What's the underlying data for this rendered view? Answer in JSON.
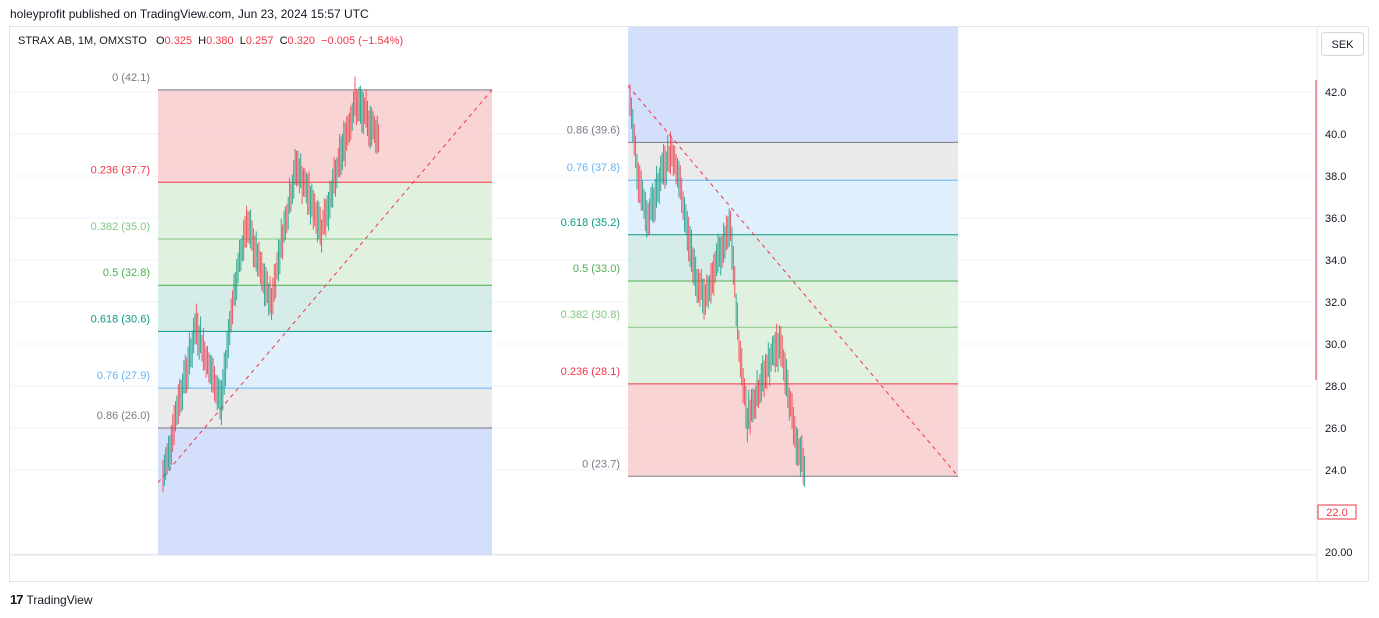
{
  "header": {
    "published": "holeyprofit published on TradingView.com, Jun 23, 2024 15:57 UTC"
  },
  "symbol": {
    "name": "STRAX AB, 1M, OMXSTO",
    "open_label": "O",
    "open": "0.325",
    "high_label": "H",
    "high": "0.380",
    "low_label": "L",
    "low": "0.257",
    "close_label": "C",
    "close": "0.320",
    "change": "−0.005 (−1.54%)"
  },
  "currency_button": "SEK",
  "footer": {
    "brand": "TradingView",
    "logo_mark": "17"
  },
  "colors": {
    "fib_0": "#787b86",
    "fib_236": "#f23645",
    "fib_382": "#81c784",
    "fib_5": "#4caf50",
    "fib_618": "#089981",
    "fib_76": "#64b5f6",
    "fib_86": "#787b86",
    "zone_red": "#f7c5c5",
    "zone_green": "#d7ecd5",
    "zone_teal": "#c7e6e2",
    "zone_blue_light": "#d6eafb",
    "zone_gray": "#e3e3e3",
    "zone_blue": "#ccd9fb",
    "candle_up": "#089981",
    "candle_down": "#f23645",
    "price_line": "#f23645"
  },
  "chart_data": {
    "type": "candlestick",
    "y_axis": {
      "ticks": [
        "42.0",
        "40.0",
        "38.0",
        "36.0",
        "34.0",
        "32.0",
        "30.0",
        "28.0",
        "26.0",
        "24.0",
        "20.00"
      ],
      "tick_values": [
        42,
        40,
        38,
        36,
        34,
        32,
        30,
        28,
        26,
        24,
        20
      ],
      "current_price": "22.0",
      "ylim": [
        20,
        43
      ]
    },
    "fib_left": {
      "direction": "up",
      "levels": [
        {
          "label": "0 (42.1)",
          "value": 42.1,
          "color": "#787b86"
        },
        {
          "label": "0.236 (37.7)",
          "value": 37.7,
          "color": "#f23645"
        },
        {
          "label": "0.382 (35.0)",
          "value": 35.0,
          "color": "#81c784"
        },
        {
          "label": "0.5 (32.8)",
          "value": 32.8,
          "color": "#4caf50"
        },
        {
          "label": "0.618 (30.6)",
          "value": 30.6,
          "color": "#089981"
        },
        {
          "label": "0.76 (27.9)",
          "value": 27.9,
          "color": "#64b5f6"
        },
        {
          "label": "0.86 (26.0)",
          "value": 26.0,
          "color": "#787b86"
        }
      ]
    },
    "fib_right": {
      "direction": "down",
      "levels": [
        {
          "label": "0.86 (39.6)",
          "value": 39.6,
          "color": "#787b86"
        },
        {
          "label": "0.76 (37.8)",
          "value": 37.8,
          "color": "#64b5f6"
        },
        {
          "label": "0.618 (35.2)",
          "value": 35.2,
          "color": "#089981"
        },
        {
          "label": "0.5 (33.0)",
          "value": 33.0,
          "color": "#4caf50"
        },
        {
          "label": "0.382 (30.8)",
          "value": 30.8,
          "color": "#81c784"
        },
        {
          "label": "0.236 (28.1)",
          "value": 28.1,
          "color": "#f23645"
        },
        {
          "label": "0 (23.7)",
          "value": 23.7,
          "color": "#787b86"
        }
      ]
    },
    "series_left": [
      23.6,
      25.5,
      27.5,
      29.0,
      30.9,
      29.5,
      28.3,
      27.2,
      31.0,
      33.5,
      35.8,
      34.5,
      33.0,
      32.0,
      34.5,
      36.5,
      38.5,
      37.5,
      36.5,
      35.5,
      36.8,
      38.5,
      40.0,
      41.5,
      41.0,
      40.4,
      39.8
    ],
    "series_right": [
      41.5,
      38.0,
      36.0,
      37.0,
      38.5,
      39.2,
      37.5,
      35.0,
      33.0,
      32.0,
      33.5,
      34.5,
      35.5,
      30.0,
      26.5,
      27.5,
      28.5,
      29.5,
      30.0,
      27.5,
      25.0,
      23.8
    ]
  }
}
